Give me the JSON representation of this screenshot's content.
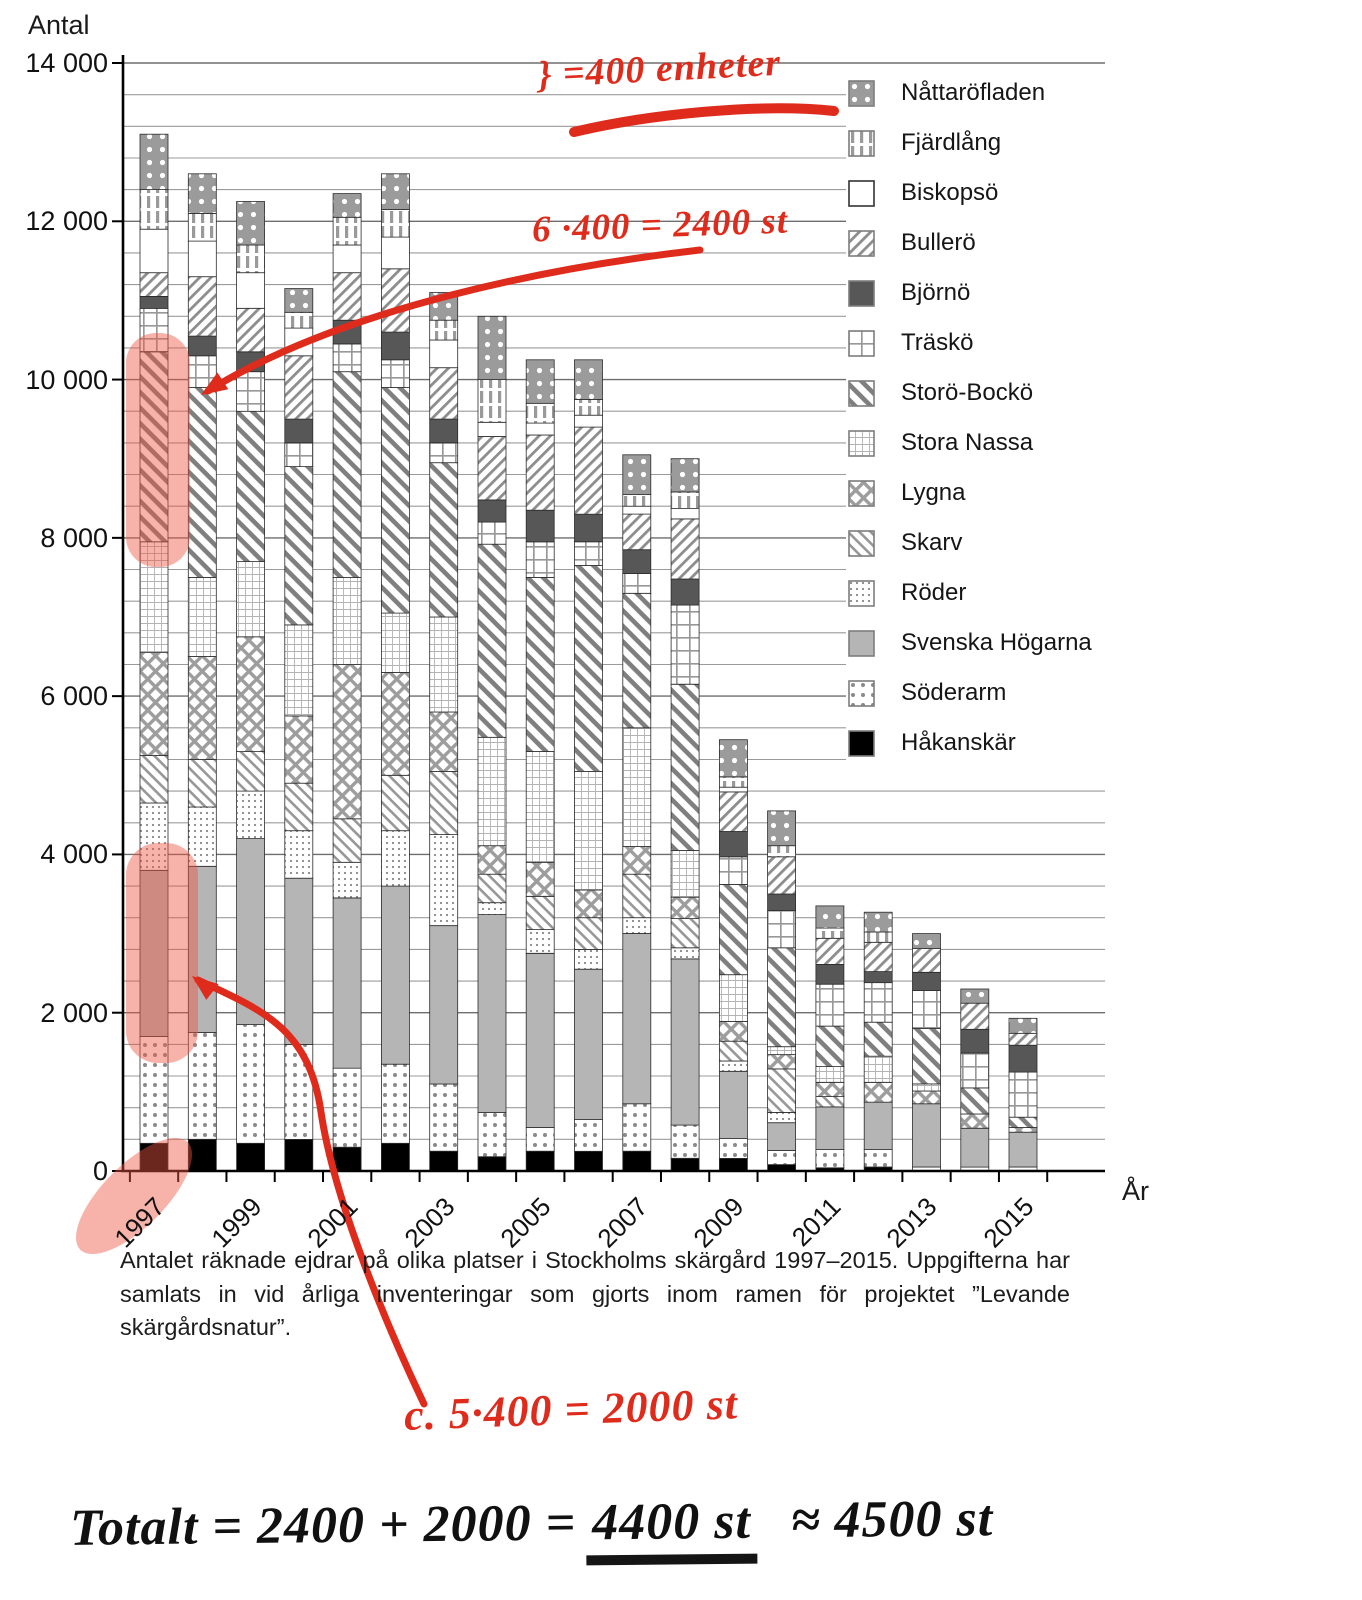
{
  "axis": {
    "y_title": "Antal",
    "x_title": "År"
  },
  "chart_data": {
    "type": "bar",
    "stacked": true,
    "x": [
      1997,
      1998,
      1999,
      2000,
      2001,
      2002,
      2003,
      2004,
      2005,
      2006,
      2007,
      2008,
      2009,
      2010,
      2011,
      2012,
      2013,
      2014,
      2015
    ],
    "x_tick_labels_shown": [
      "1997",
      "1999",
      "2001",
      "2003",
      "2005",
      "2007",
      "2009",
      "2011",
      "2013",
      "2015"
    ],
    "y_tick_labels": [
      "0",
      "2 000",
      "4 000",
      "6 000",
      "8 000",
      "10 000",
      "12 000",
      "14 000"
    ],
    "ylim": [
      0,
      14000
    ],
    "gridline_interval": 400,
    "y_tick_interval": 2000,
    "grid": true,
    "legend_position": "right",
    "xlabel": "År",
    "ylabel": "Antal",
    "series_note": "legend order = top of stack first; bars stack from last series (Håkanskär) upward",
    "series": [
      {
        "name": "Nåttaröfladen",
        "pattern": "gray-white-dots",
        "values": [
          700,
          500,
          550,
          300,
          300,
          450,
          350,
          800,
          550,
          500,
          500,
          420,
          470,
          440,
          280,
          250,
          190,
          180,
          190
        ]
      },
      {
        "name": "Fjärdlång",
        "pattern": "vertical-dashes",
        "values": [
          500,
          350,
          350,
          200,
          350,
          350,
          250,
          540,
          250,
          200,
          150,
          210,
          130,
          140,
          130,
          130,
          0,
          0,
          0
        ]
      },
      {
        "name": "Biskopsö",
        "pattern": "white",
        "values": [
          550,
          450,
          450,
          350,
          350,
          400,
          350,
          180,
          150,
          150,
          100,
          130,
          60,
          0,
          0,
          0,
          0,
          0,
          0
        ]
      },
      {
        "name": "Bullerö",
        "pattern": "hatch-up",
        "values": [
          300,
          750,
          550,
          800,
          600,
          800,
          650,
          800,
          950,
          1100,
          450,
          760,
          500,
          470,
          330,
          370,
          300,
          330,
          150
        ]
      },
      {
        "name": "Björnö",
        "pattern": "dark-gray",
        "values": [
          150,
          250,
          250,
          300,
          300,
          350,
          300,
          280,
          400,
          350,
          300,
          330,
          320,
          210,
          250,
          140,
          230,
          300,
          340
        ]
      },
      {
        "name": "Träskö",
        "pattern": "grid-coarse",
        "values": [
          550,
          400,
          500,
          300,
          350,
          350,
          250,
          280,
          450,
          300,
          250,
          1000,
          350,
          470,
          530,
          500,
          480,
          440,
          570
        ]
      },
      {
        "name": "Storö-Bockö",
        "pattern": "hatch-down-bold",
        "values": [
          2400,
          2400,
          1900,
          2000,
          2600,
          2850,
          1950,
          2440,
          2200,
          2600,
          1700,
          2100,
          1140,
          1250,
          510,
          430,
          700,
          330,
          130
        ]
      },
      {
        "name": "Stora Nassa",
        "pattern": "grid-fine",
        "values": [
          1400,
          1000,
          950,
          1150,
          1100,
          750,
          1200,
          1370,
          1400,
          1500,
          1500,
          590,
          590,
          100,
          200,
          330,
          90,
          0,
          0
        ]
      },
      {
        "name": "Lygna",
        "pattern": "crosshatch",
        "values": [
          1300,
          1300,
          1450,
          850,
          1950,
          1300,
          750,
          360,
          430,
          350,
          350,
          270,
          250,
          180,
          180,
          250,
          160,
          180,
          60
        ]
      },
      {
        "name": "Skarv",
        "pattern": "hatch-down",
        "values": [
          600,
          600,
          500,
          600,
          550,
          700,
          800,
          360,
          420,
          400,
          550,
          370,
          250,
          550,
          130,
          0,
          0,
          0,
          0
        ]
      },
      {
        "name": "Röder",
        "pattern": "dots-fine",
        "values": [
          850,
          750,
          600,
          600,
          450,
          700,
          1150,
          150,
          300,
          250,
          200,
          140,
          130,
          130,
          0,
          0,
          0,
          0,
          0
        ]
      },
      {
        "name": "Svenska Högarna",
        "pattern": "light-gray",
        "values": [
          2100,
          2100,
          2350,
          2100,
          2150,
          2250,
          2000,
          2500,
          2200,
          1900,
          2150,
          2100,
          850,
          350,
          540,
          600,
          800,
          490,
          440
        ]
      },
      {
        "name": "Söderarm",
        "pattern": "dots-sparse",
        "values": [
          1350,
          1350,
          1500,
          1200,
          1000,
          1000,
          850,
          560,
          300,
          400,
          600,
          420,
          250,
          180,
          230,
          220,
          50,
          50,
          50
        ]
      },
      {
        "name": "Håkanskär",
        "pattern": "black",
        "values": [
          350,
          400,
          350,
          400,
          300,
          350,
          250,
          180,
          250,
          250,
          250,
          160,
          160,
          80,
          40,
          50,
          0,
          0,
          0
        ]
      }
    ],
    "totals": [
      13100,
      12600,
      12250,
      11150,
      12350,
      12600,
      11100,
      10800,
      10250,
      10250,
      9050,
      9000,
      5450,
      4550,
      3350,
      3270,
      3000,
      2300,
      1930
    ]
  },
  "caption": {
    "text": "Antalet räknade ejdrar på olika platser i Stockholms skärgård 1997–2015. Uppgifterna har samlats in vid årliga inventeringar som gjorts inom ramen för projektet ”Levande skärgårdsnatur”."
  },
  "annotations": {
    "red_note_top": "} =400 enheter",
    "red_calc_upper": "6 ·400 = 2400 st",
    "red_calc_lower": "c. 5·400 = 2000 st",
    "black_total_prefix": "Totalt = 2400 + 2000 =",
    "black_total_underlined": "4400 st",
    "black_total_approx": "≈ 4500 st",
    "ink_red": "#df2b1b",
    "ink_black": "#111111",
    "highlight_color": "#ee5542",
    "highlighted_targets": [
      "1997 Storö-Bockö segment (≈8000–10400)",
      "1997 Svenska Högarna segment (≈1700–3800)",
      "x-axis label 1997"
    ]
  }
}
